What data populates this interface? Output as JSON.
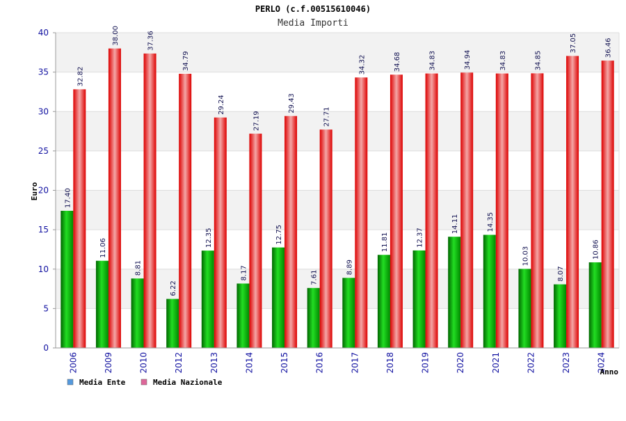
{
  "chart_data": {
    "type": "bar",
    "title": "PERLO (c.f.00515610046)",
    "subtitle": "Media Importi",
    "xlabel": "Anno",
    "ylabel": "Euro",
    "ylim": [
      0,
      40
    ],
    "yticks": [
      0,
      5,
      10,
      15,
      20,
      25,
      30,
      35,
      40
    ],
    "grid": true,
    "legend_position": "bottom-left",
    "categories": [
      "2006",
      "2009",
      "2010",
      "2012",
      "2013",
      "2014",
      "2015",
      "2016",
      "2017",
      "2018",
      "2019",
      "2020",
      "2021",
      "2022",
      "2023",
      "2024"
    ],
    "series": [
      {
        "name": "Media Ente",
        "color": "#00aa00",
        "legend_color": "#5599dd",
        "values": [
          17.4,
          11.06,
          8.81,
          6.22,
          12.35,
          8.17,
          12.75,
          7.61,
          8.89,
          11.81,
          12.37,
          14.11,
          14.35,
          10.03,
          8.07,
          10.86
        ],
        "labels": [
          "17.40",
          "11.06",
          "8.81",
          "6.22",
          "12.35",
          "8.17",
          "12.75",
          "7.61",
          "8.89",
          "11.81",
          "12.37",
          "14.11",
          "14.35",
          "10.03",
          "8.07",
          "10.86"
        ]
      },
      {
        "name": "Media Nazionale",
        "color": "#ee0000",
        "legend_color": "#dd6699",
        "values": [
          32.82,
          38.0,
          37.36,
          34.79,
          29.24,
          27.19,
          29.43,
          27.71,
          34.32,
          34.68,
          34.83,
          34.94,
          34.83,
          34.85,
          37.05,
          36.46
        ],
        "labels": [
          "32.82",
          "38.00",
          "37.36",
          "34.79",
          "29.24",
          "27.19",
          "29.43",
          "27.71",
          "34.32",
          "34.68",
          "34.83",
          "34.94",
          "34.83",
          "34.85",
          "37.05",
          "36.46"
        ]
      }
    ]
  }
}
